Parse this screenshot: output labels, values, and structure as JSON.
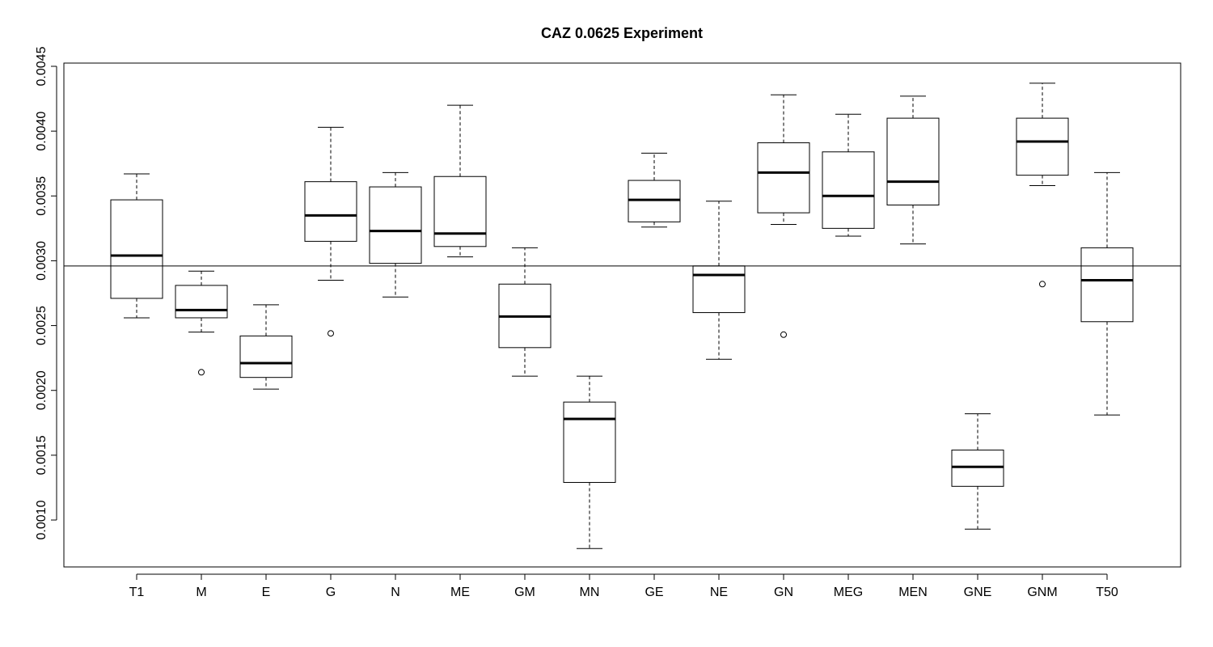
{
  "chart_data": {
    "type": "box",
    "title": "CAZ 0.0625 Experiment",
    "xlabel": "",
    "ylabel": "",
    "ylim": [
      0.00072,
      0.00455
    ],
    "yticks": [
      0.001,
      0.0015,
      0.002,
      0.0025,
      0.003,
      0.0035,
      0.004,
      0.0045
    ],
    "ytick_labels": [
      "0.0010",
      "0.0015",
      "0.0020",
      "0.0025",
      "0.0030",
      "0.0035",
      "0.0040",
      "0.0045"
    ],
    "reference_line": 0.00296,
    "grid": false,
    "categories": [
      "T1",
      "M",
      "E",
      "G",
      "N",
      "ME",
      "GM",
      "MN",
      "GE",
      "NE",
      "GN",
      "MEG",
      "MEN",
      "GNE",
      "GNM",
      "T50"
    ],
    "boxes": [
      {
        "label": "T1",
        "whisker_low": 0.00256,
        "q1": 0.00271,
        "median": 0.00304,
        "q3": 0.00347,
        "whisker_high": 0.00367,
        "outliers": []
      },
      {
        "label": "M",
        "whisker_low": 0.00245,
        "q1": 0.00256,
        "median": 0.00262,
        "q3": 0.00281,
        "whisker_high": 0.00292,
        "outliers": [
          0.00214
        ]
      },
      {
        "label": "E",
        "whisker_low": 0.00201,
        "q1": 0.0021,
        "median": 0.00221,
        "q3": 0.00242,
        "whisker_high": 0.00266,
        "outliers": []
      },
      {
        "label": "G",
        "whisker_low": 0.00285,
        "q1": 0.00315,
        "median": 0.00335,
        "q3": 0.00361,
        "whisker_high": 0.00403,
        "outliers": [
          0.00244
        ]
      },
      {
        "label": "N",
        "whisker_low": 0.00272,
        "q1": 0.00298,
        "median": 0.00323,
        "q3": 0.00357,
        "whisker_high": 0.00368,
        "outliers": []
      },
      {
        "label": "ME",
        "whisker_low": 0.00303,
        "q1": 0.00311,
        "median": 0.00321,
        "q3": 0.00365,
        "whisker_high": 0.0042,
        "outliers": []
      },
      {
        "label": "GM",
        "whisker_low": 0.00211,
        "q1": 0.00233,
        "median": 0.00257,
        "q3": 0.00282,
        "whisker_high": 0.0031,
        "outliers": []
      },
      {
        "label": "MN",
        "whisker_low": 0.00078,
        "q1": 0.00129,
        "median": 0.00178,
        "q3": 0.00191,
        "whisker_high": 0.00211,
        "outliers": []
      },
      {
        "label": "GE",
        "whisker_low": 0.00326,
        "q1": 0.0033,
        "median": 0.00347,
        "q3": 0.00362,
        "whisker_high": 0.00383,
        "outliers": []
      },
      {
        "label": "NE",
        "whisker_low": 0.00224,
        "q1": 0.0026,
        "median": 0.00289,
        "q3": 0.00296,
        "whisker_high": 0.00346,
        "outliers": []
      },
      {
        "label": "GN",
        "whisker_low": 0.00328,
        "q1": 0.00337,
        "median": 0.00368,
        "q3": 0.00391,
        "whisker_high": 0.00428,
        "outliers": [
          0.00243
        ]
      },
      {
        "label": "MEG",
        "whisker_low": 0.00319,
        "q1": 0.00325,
        "median": 0.0035,
        "q3": 0.00384,
        "whisker_high": 0.00413,
        "outliers": []
      },
      {
        "label": "MEN",
        "whisker_low": 0.00313,
        "q1": 0.00343,
        "median": 0.00361,
        "q3": 0.0041,
        "whisker_high": 0.00427,
        "outliers": []
      },
      {
        "label": "GNE",
        "whisker_low": 0.00093,
        "q1": 0.00126,
        "median": 0.00141,
        "q3": 0.00154,
        "whisker_high": 0.00182,
        "outliers": []
      },
      {
        "label": "GNM",
        "whisker_low": 0.00358,
        "q1": 0.00366,
        "median": 0.00392,
        "q3": 0.0041,
        "whisker_high": 0.00437,
        "outliers": [
          0.00282
        ]
      },
      {
        "label": "T50",
        "whisker_low": 0.00181,
        "q1": 0.00253,
        "median": 0.00285,
        "q3": 0.0031,
        "whisker_high": 0.00368,
        "outliers": []
      }
    ]
  }
}
